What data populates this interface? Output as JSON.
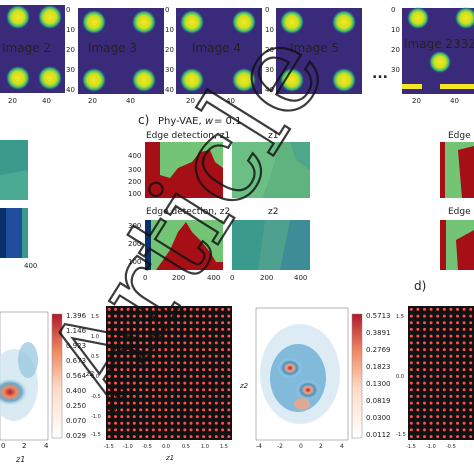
{
  "figure": {
    "images": [
      {
        "label": "Image 2"
      },
      {
        "label": "Image 3"
      },
      {
        "label": "Image 4"
      },
      {
        "label": "Image 5"
      },
      {
        "label": "Image 2332"
      }
    ],
    "ellipsis": "...",
    "image_axis": {
      "x_ticks": [
        "20",
        "40"
      ],
      "y_ticks": [
        "0",
        "10",
        "20",
        "30",
        "40"
      ]
    },
    "panel_c": {
      "label": "c)",
      "title_text": "Phy-VAE,",
      "weight_sym": "w",
      "weight_val": "= 0.1",
      "weight_color": "#d62728",
      "sub_titles": [
        "Edge detection, z1",
        "z1",
        "Edge detection, z2",
        "z2"
      ],
      "y_ticks": [
        "400",
        "300",
        "200",
        "100",
        "0"
      ],
      "x_ticks": [
        "0",
        "200",
        "400"
      ]
    },
    "panel_d": {
      "label": "d)",
      "sub_titles": [
        "Edge",
        "Edge"
      ]
    },
    "left_strip": {
      "x_tick": "400"
    },
    "colorbars": {
      "left": [
        "1.396",
        "1.146",
        "0.923",
        "0.673",
        "0.564",
        "0.400",
        "0.250",
        "0.070",
        "0.029"
      ],
      "right": [
        "0.5713",
        "0.3891",
        "0.2769",
        "0.1823",
        "0.1300",
        "0.0819",
        "0.0300",
        "0.0112"
      ]
    },
    "bottom_axes": {
      "density_x_ticks": [
        "0",
        "2",
        "4"
      ],
      "density_x_label": "z1",
      "density2_x_ticks": [
        "-4",
        "-2",
        "0",
        "2",
        "4"
      ],
      "density2_y_label": "z2",
      "grid_x_ticks": [
        "-1.5",
        "-1.0",
        "-0.5",
        "0.0",
        "0.5",
        "1.0",
        "1.5"
      ],
      "grid_y_ticks": [
        "1.5",
        "1.0",
        "0.5",
        "0.0",
        "-0.5",
        "-1.0",
        "-1.5"
      ],
      "grid_x_label": "z1",
      "grid_y_label": "z2"
    },
    "colors": {
      "viridis_dark": "#3b0f70",
      "viridis_bg": "#3a2b7a",
      "viridis_yellow": "#f5e626",
      "edge_red": "#a50f15",
      "edge_green": "#74c476",
      "edge_blue": "#08306b",
      "latent_green": "#5fb37f",
      "latent_teal": "#3a9a8c",
      "grid_dot": "#ff4d4d"
    },
    "watermark": "Article"
  }
}
